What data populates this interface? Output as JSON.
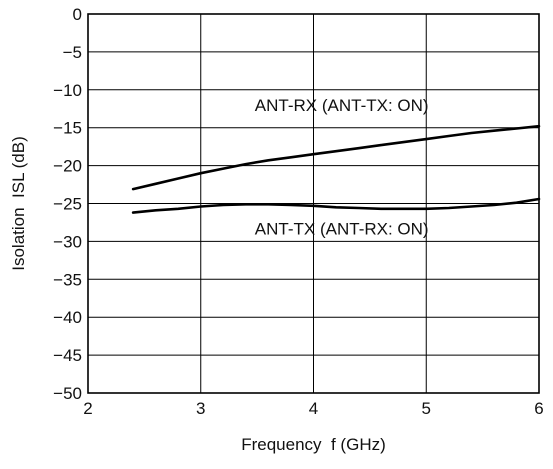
{
  "chart_data": {
    "type": "line",
    "title": "",
    "xlabel": "Frequency  f (GHz)",
    "ylabel": "Isolation  ISL (dB)",
    "xlim": [
      2,
      6
    ],
    "ylim": [
      -50,
      0
    ],
    "xticks": [
      2,
      3,
      4,
      5,
      6
    ],
    "yticks": [
      0,
      -5,
      -10,
      -15,
      -20,
      -25,
      -30,
      -35,
      -40,
      -45,
      -50
    ],
    "xtick_labels": [
      "2",
      "3",
      "4",
      "5",
      "6"
    ],
    "ytick_labels": [
      "0",
      "−5",
      "−10",
      "−15",
      "−20",
      "−25",
      "−30",
      "−35",
      "−40",
      "−45",
      "−50"
    ],
    "grid": true,
    "legend": "none",
    "series": [
      {
        "x": [
          2.4,
          2.6,
          2.8,
          3.0,
          3.2,
          3.4,
          3.6,
          3.8,
          4.0,
          4.2,
          4.4,
          4.6,
          4.8,
          5.0,
          5.2,
          5.4,
          5.6,
          5.8,
          6.0
        ],
        "values": [
          -23.1,
          -22.4,
          -21.7,
          -21.0,
          -20.4,
          -19.8,
          -19.3,
          -18.9,
          -18.5,
          -18.1,
          -17.7,
          -17.3,
          -16.9,
          -16.5,
          -16.1,
          -15.7,
          -15.4,
          -15.1,
          -14.8
        ],
        "color": "#000000"
      },
      {
        "x": [
          2.4,
          2.6,
          2.8,
          3.0,
          3.2,
          3.4,
          3.6,
          3.8,
          4.0,
          4.2,
          4.4,
          4.6,
          4.8,
          5.0,
          5.2,
          5.4,
          5.6,
          5.8,
          6.0
        ],
        "values": [
          -26.2,
          -25.9,
          -25.7,
          -25.4,
          -25.2,
          -25.1,
          -25.1,
          -25.2,
          -25.3,
          -25.5,
          -25.6,
          -25.7,
          -25.7,
          -25.7,
          -25.6,
          -25.4,
          -25.2,
          -24.9,
          -24.4
        ],
        "color": "#000000"
      }
    ],
    "annotations": [
      {
        "text": "ANT-RX (ANT-TX: ON)",
        "x": 4.25,
        "y": -12.8
      },
      {
        "text": "ANT-TX (ANT-RX: ON)",
        "x": 4.25,
        "y": -29.1
      }
    ]
  }
}
